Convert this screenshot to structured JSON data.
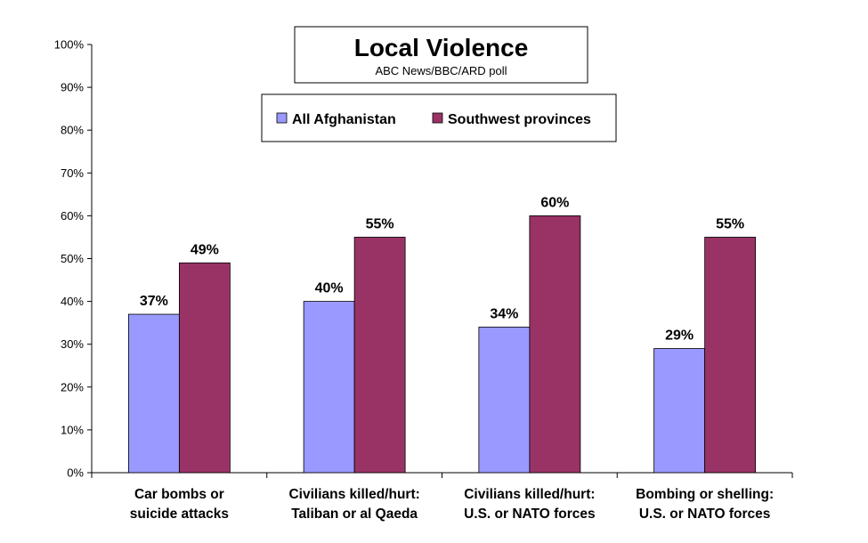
{
  "chart_data": {
    "type": "bar",
    "title": "Local Violence",
    "subtitle": "ABC News/BBC/ARD poll",
    "categories": [
      [
        "Car bombs or",
        "suicide attacks"
      ],
      [
        "Civilians killed/hurt:",
        "Taliban or al Qaeda"
      ],
      [
        "Civilians killed/hurt:",
        "U.S. or NATO forces"
      ],
      [
        "Bombing or shelling:",
        "U.S. or NATO forces"
      ]
    ],
    "series": [
      {
        "name": "All Afghanistan",
        "color": "#9999ff",
        "values": [
          37,
          40,
          34,
          29
        ]
      },
      {
        "name": "Southwest provinces",
        "color": "#993366",
        "values": [
          49,
          55,
          60,
          55
        ]
      }
    ],
    "ylim": [
      0,
      100
    ],
    "yticks": [
      0,
      10,
      20,
      30,
      40,
      50,
      60,
      70,
      80,
      90,
      100
    ],
    "ytick_suffix": "%",
    "value_suffix": "%",
    "grid": false,
    "legend_position": "top-center"
  }
}
